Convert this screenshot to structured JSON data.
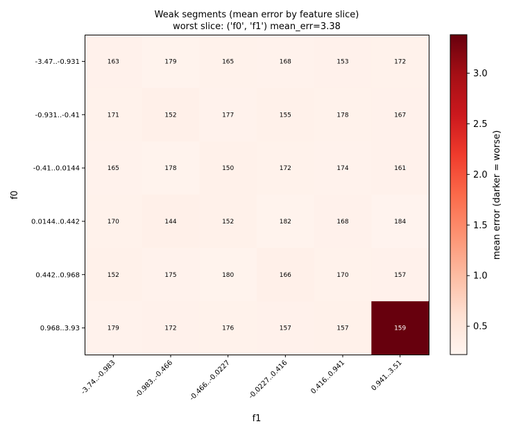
{
  "chart_data": {
    "type": "heatmap",
    "title": "Weak segments (mean error by feature slice)",
    "subtitle": "worst slice: ('f0', 'f1') mean_err=3.38",
    "xlabel": "f1",
    "ylabel": "f0",
    "x_categories": [
      "-3.74..-0.983",
      "-0.983..-0.466",
      "-0.466..-0.0227",
      "-0.0227..0.416",
      "0.416..0.941",
      "0.941..3.51"
    ],
    "y_categories": [
      "-3.47..-0.931",
      "-0.931..-0.41",
      "-0.41..0.0144",
      "0.0144..0.442",
      "0.442..0.968",
      "0.968..3.93"
    ],
    "counts": [
      [
        163,
        179,
        165,
        168,
        153,
        172
      ],
      [
        171,
        152,
        177,
        155,
        178,
        167
      ],
      [
        165,
        178,
        150,
        172,
        174,
        161
      ],
      [
        170,
        144,
        152,
        182,
        168,
        184
      ],
      [
        152,
        175,
        180,
        166,
        170,
        157
      ],
      [
        179,
        172,
        176,
        157,
        157,
        159
      ]
    ],
    "mean_error": [
      [
        0.29,
        0.26,
        0.28,
        0.27,
        0.29,
        0.28
      ],
      [
        0.28,
        0.31,
        0.27,
        0.3,
        0.28,
        0.29
      ],
      [
        0.27,
        0.26,
        0.3,
        0.28,
        0.27,
        0.29
      ],
      [
        0.28,
        0.31,
        0.3,
        0.26,
        0.29,
        0.25
      ],
      [
        0.3,
        0.27,
        0.26,
        0.31,
        0.28,
        0.29
      ],
      [
        0.27,
        0.29,
        0.28,
        0.29,
        0.3,
        3.38
      ]
    ],
    "colorbar": {
      "label": "mean error (darker = worse)",
      "range": [
        0.22,
        3.38
      ],
      "ticks": [
        0.5,
        1.0,
        1.5,
        2.0,
        2.5,
        3.0
      ],
      "tick_labels": [
        "0.5",
        "1.0",
        "1.5",
        "2.0",
        "2.5",
        "3.0"
      ],
      "colormap": "Reds"
    },
    "grid": false
  }
}
